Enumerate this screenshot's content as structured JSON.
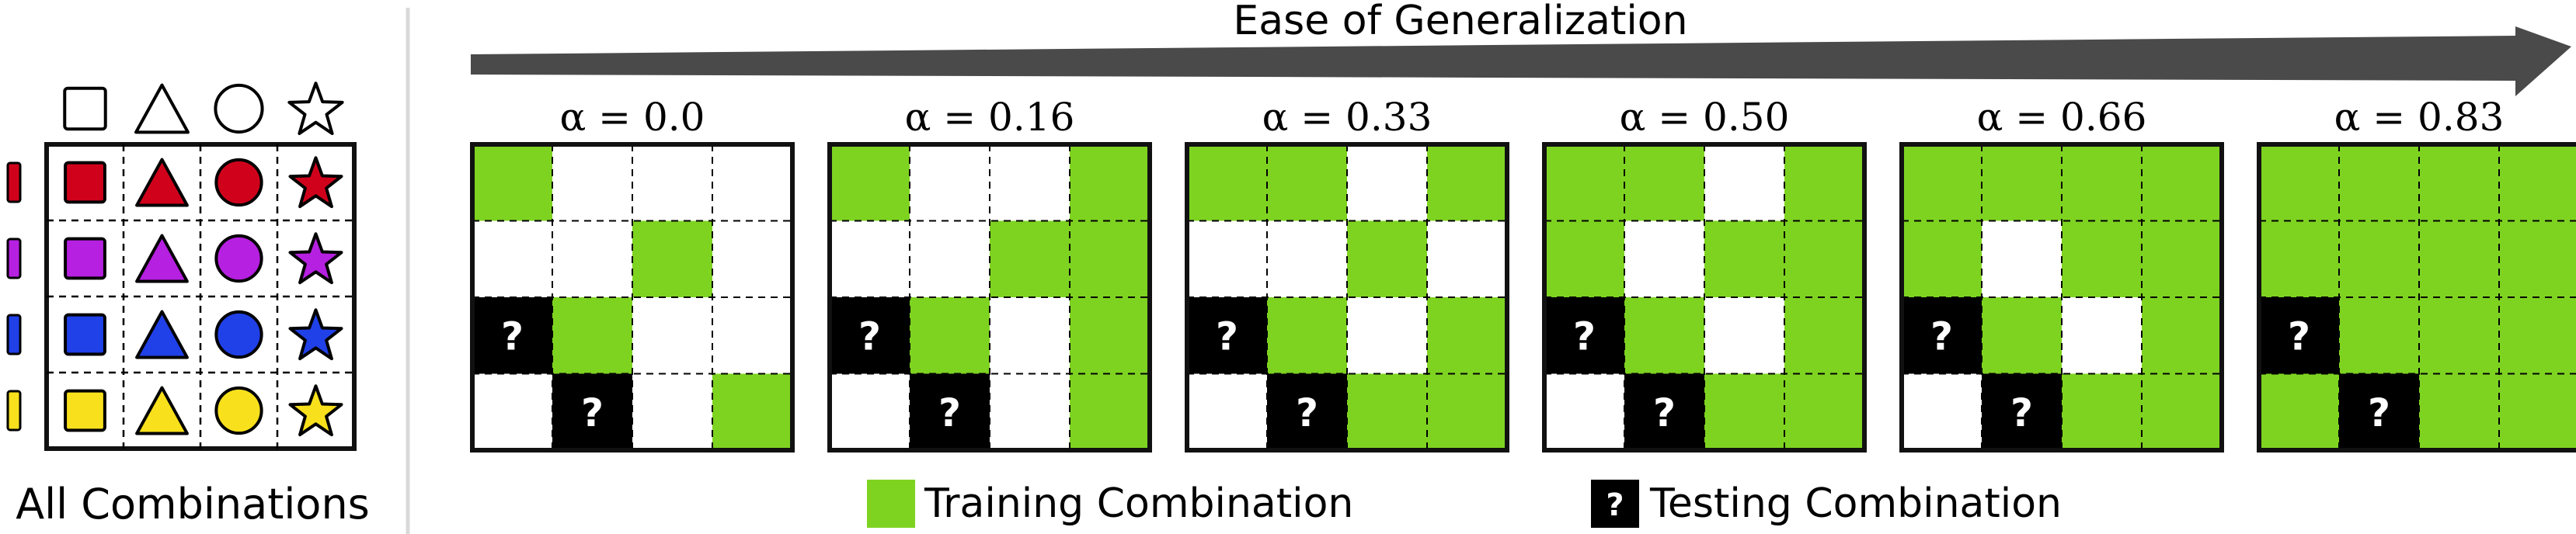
{
  "colors": {
    "train": "#7ED321",
    "test": "#000000",
    "empty": "#ffffff",
    "arrow": "#4a4a4a",
    "border": "#111111",
    "row_colors": [
      "#d0021b",
      "#b620e0",
      "#2040e8",
      "#f8e01c"
    ]
  },
  "left_panel": {
    "caption": "All Combinations",
    "shape_header_icons": [
      "square-icon",
      "triangle-icon",
      "circle-icon",
      "star-icon"
    ]
  },
  "arrow": {
    "label": "Ease of Generalization"
  },
  "panels": [
    {
      "label": "α = 0.0",
      "grid": [
        [
          "T",
          "E",
          "E",
          "E"
        ],
        [
          "E",
          "E",
          "T",
          "E"
        ],
        [
          "Q",
          "T",
          "E",
          "E"
        ],
        [
          "E",
          "Q",
          "E",
          "T"
        ]
      ]
    },
    {
      "label": "α = 0.16",
      "grid": [
        [
          "T",
          "E",
          "E",
          "T"
        ],
        [
          "E",
          "E",
          "T",
          "T"
        ],
        [
          "Q",
          "T",
          "E",
          "T"
        ],
        [
          "E",
          "Q",
          "E",
          "T"
        ]
      ]
    },
    {
      "label": "α = 0.33",
      "grid": [
        [
          "T",
          "T",
          "E",
          "T"
        ],
        [
          "E",
          "E",
          "T",
          "E"
        ],
        [
          "Q",
          "T",
          "E",
          "T"
        ],
        [
          "E",
          "Q",
          "T",
          "T"
        ]
      ]
    },
    {
      "label": "α = 0.50",
      "grid": [
        [
          "T",
          "T",
          "E",
          "T"
        ],
        [
          "T",
          "E",
          "T",
          "T"
        ],
        [
          "Q",
          "T",
          "E",
          "T"
        ],
        [
          "E",
          "Q",
          "T",
          "T"
        ]
      ]
    },
    {
      "label": "α = 0.66",
      "grid": [
        [
          "T",
          "T",
          "T",
          "T"
        ],
        [
          "T",
          "E",
          "T",
          "T"
        ],
        [
          "Q",
          "T",
          "E",
          "T"
        ],
        [
          "E",
          "Q",
          "T",
          "T"
        ]
      ]
    },
    {
      "label": "α = 0.83",
      "grid": [
        [
          "T",
          "T",
          "T",
          "T"
        ],
        [
          "T",
          "T",
          "T",
          "T"
        ],
        [
          "Q",
          "T",
          "T",
          "T"
        ],
        [
          "T",
          "Q",
          "T",
          "T"
        ]
      ]
    }
  ],
  "legend": {
    "train_label": "Training Combination",
    "test_label": "Testing Combination",
    "test_glyph": "?"
  }
}
